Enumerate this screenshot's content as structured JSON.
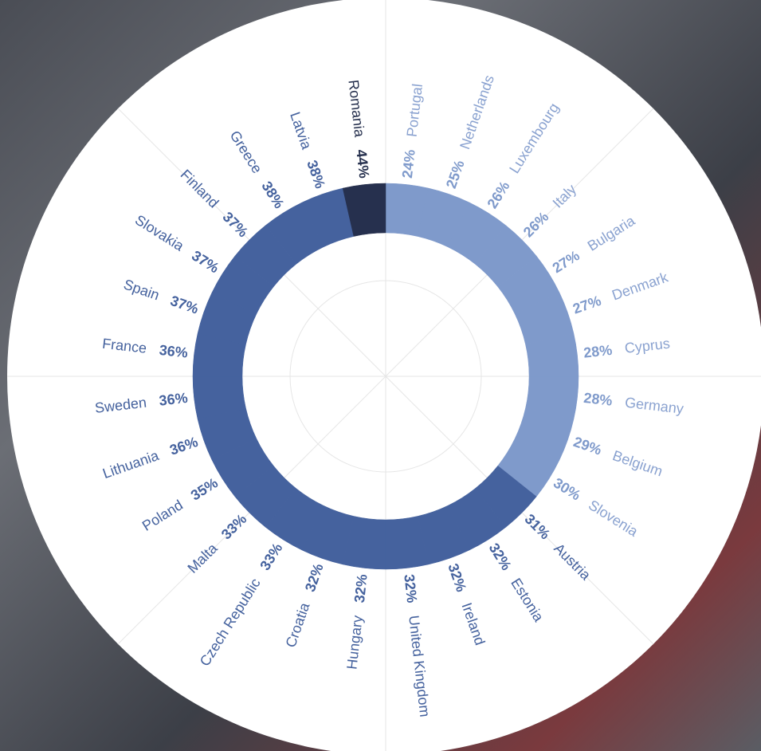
{
  "chart_data": {
    "type": "radial-donut",
    "categories": [
      "Portugal",
      "Netherlands",
      "Luxembourg",
      "Italy",
      "Bulgaria",
      "Denmark",
      "Cyprus",
      "Germany",
      "Belgium",
      "Slovenia",
      "Austria",
      "Estonia",
      "Ireland",
      "United Kingdom",
      "Hungary",
      "Croatia",
      "Czech Republic",
      "Malta",
      "Poland",
      "Lithuania",
      "Sweden",
      "France",
      "Spain",
      "Slovakia",
      "Finland",
      "Greece",
      "Latvia",
      "Romania"
    ],
    "values": [
      24,
      25,
      26,
      26,
      27,
      27,
      28,
      28,
      29,
      30,
      31,
      32,
      32,
      32,
      32,
      32,
      33,
      33,
      35,
      36,
      36,
      36,
      37,
      37,
      37,
      38,
      38,
      44
    ],
    "value_labels": [
      "24%",
      "25%",
      "26%",
      "26%",
      "27%",
      "27%",
      "28%",
      "28%",
      "29%",
      "30%",
      "31%",
      "32%",
      "32%",
      "32%",
      "32%",
      "32%",
      "33%",
      "33%",
      "35%",
      "36%",
      "36%",
      "36%",
      "37%",
      "37%",
      "37%",
      "38%",
      "38%",
      "44%"
    ],
    "colors": [
      "#7f9acb",
      "#7f9acb",
      "#7f9acb",
      "#7f9acb",
      "#7f9acb",
      "#7f9acb",
      "#7f9acb",
      "#7f9acb",
      "#7f9acb",
      "#7f9acb",
      "#45629e",
      "#45629e",
      "#45629e",
      "#45629e",
      "#45629e",
      "#45629e",
      "#45629e",
      "#45629e",
      "#45629e",
      "#45629e",
      "#45629e",
      "#45629e",
      "#45629e",
      "#45629e",
      "#45629e",
      "#45629e",
      "#45629e",
      "#26304e"
    ]
  }
}
